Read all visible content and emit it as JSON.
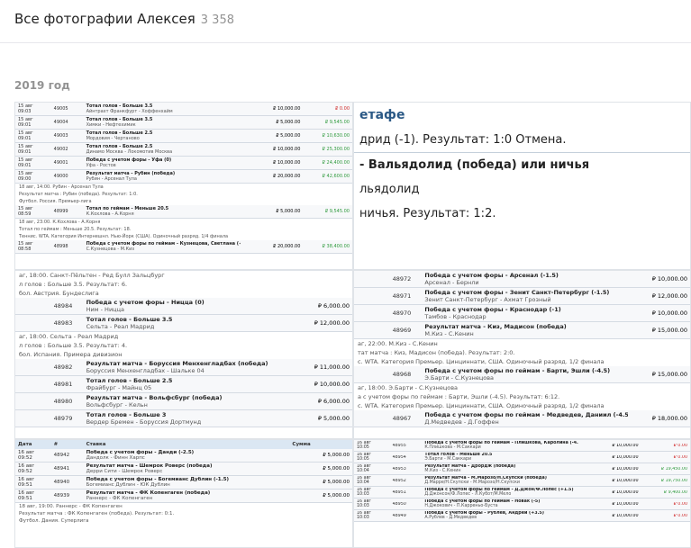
{
  "header": {
    "title": "Все фотографии Алексея",
    "count": "3 358"
  },
  "year": "2019 год",
  "photos": [
    {
      "items": [
        {
          "date": "15 авг",
          "time": "09:03",
          "id": "49005",
          "bet": "Тотал голов - Больше 3.5",
          "match": "Айнтрахт Франкфурт - Хоффенхайм",
          "stake": "₽ 10,000.00",
          "result": "₽ 0.00"
        },
        {
          "date": "15 авг",
          "time": "09:01",
          "id": "49004",
          "bet": "Тотал голов - Больше 3.5",
          "match": "Химки - Нефтехимик",
          "stake": "₽ 5,000.00",
          "result": "₽ 9,545.00"
        },
        {
          "date": "15 авг",
          "time": "09:01",
          "id": "49003",
          "bet": "Тотал голов - Больше 2.5",
          "match": "Мордовия - Чертаново",
          "stake": "₽ 5,000.00",
          "result": "₽ 10,630.00"
        },
        {
          "date": "15 авг",
          "time": "09:01",
          "id": "49002",
          "bet": "Тотал голов - Больше 2.5",
          "match": "Динамо Москва - Локомотив Москва",
          "stake": "₽ 10,000.00",
          "result": "₽ 25,300.00"
        },
        {
          "date": "15 авг",
          "time": "09:01",
          "id": "49001",
          "bet": "Победа с учетом форы - Уфа (0)",
          "match": "Уфа - Ростов",
          "stake": "₽ 10,000.00",
          "result": "₽ 24,400.00"
        },
        {
          "date": "15 авг",
          "time": "09:00",
          "id": "49000",
          "bet": "Результат матча - Рубин (победа)",
          "match": "Рубин - Арсенал Тула",
          "stake": "₽ 20,000.00",
          "result": "₽ 42,600.00"
        },
        {
          "text": "18 авг, 14:00. Рубин - Арсенал Тула"
        },
        {
          "text": "Результат матча : Рубин (победа). Результат: 1:0."
        },
        {
          "text": "Футбол. Россия. Премьер-лига"
        },
        {
          "date": "15 авг",
          "time": "08:59",
          "id": "48999",
          "bet": "Тотал по геймам - Меньше 20.5",
          "match": "К.Кохлова - А.Корня",
          "stake": "₽ 5,000.00",
          "result": "₽ 9,545.00"
        },
        {
          "text": "18 авг, 23:00. К.Кохлова - А.Корня"
        },
        {
          "text": "Тотал по геймам : Меньше 20.5. Результат: 18."
        },
        {
          "text": "Теннис. WTA. Категория Интернешнл. Нью-Йорк (США). Одиночный разряд. 1/4 финала"
        },
        {
          "date": "15 авг",
          "time": "08:58",
          "id": "48998",
          "bet": "Победа с учетом форы по геймам - Кузнецова, Светлана (+3.5)",
          "match": "С.Кузнецова - М.Киз",
          "stake": "₽ 20,000.00",
          "result": "₽ 38,400.00"
        }
      ]
    },
    {
      "items": [
        {
          "text": "етафе"
        },
        {
          "text": "дрид (-1). Результат: 1:0 Отмена."
        },
        {
          "text": "- Вальядолид (победа) или ничья"
        },
        {
          "text": "льядолид"
        },
        {
          "text": "ничья. Результат: 1:2."
        }
      ]
    },
    {
      "items": [
        {
          "text": "аг, 18:00. Санкт-Пёльтен - Ред Булл Зальцбург"
        },
        {
          "text": "л голов : Больше 3.5. Результат: 6."
        },
        {
          "text": "бол. Австрия. Бундеслига"
        },
        {
          "id": "48984",
          "bet": "Победа с учетом форы - Ницца (0)",
          "match": "Ним - Ницца",
          "stake": "₽ 6,000.00"
        },
        {
          "id": "48983",
          "bet": "Тотал голов - Больше 3.5",
          "match": "Сельта - Реал Мадрид",
          "stake": "₽ 12,000.00"
        },
        {
          "text": "аг, 18:00. Сельта - Реал Мадрид"
        },
        {
          "text": "л голов : Больше 3.5. Результат: 4."
        },
        {
          "text": "бол. Испания. Примера дивизион"
        },
        {
          "id": "48982",
          "bet": "Результат матча - Боруссия Менхенгладбах (победа)",
          "match": "Боруссия Менхенгладбах - Шальке 04",
          "stake": "₽ 11,000.00"
        },
        {
          "id": "48981",
          "bet": "Тотал голов - Больше 2.5",
          "match": "Фрайбург - Майнц 05",
          "stake": "₽ 10,000.00"
        },
        {
          "id": "48980",
          "bet": "Результат матча - Вольфсбург (победа)",
          "match": "Вольфсбург - Кельн",
          "stake": "₽ 6,000.00"
        },
        {
          "id": "48979",
          "bet": "Тотал голов - Больше 3",
          "match": "Вердер Бремен - Боруссия Дортмунд",
          "stake": "₽ 5,000.00"
        }
      ]
    },
    {
      "items": [
        {
          "id": "48972",
          "bet": "Победа с учетом форы - Арсенал (-1.5)",
          "match": "Арсенал - Бернли",
          "stake": "₽ 10,000.00"
        },
        {
          "id": "48971",
          "bet": "Победа с учетом форы - Зенит Санкт-Петербург (-1.5)",
          "match": "Зенит Санкт-Петербург - Ахмат Грозный",
          "stake": "₽ 12,000.00"
        },
        {
          "id": "48970",
          "bet": "Победа с учетом форы - Краснодар (-1)",
          "match": "Тамбов - Краснодар",
          "stake": "₽ 10,000.00"
        },
        {
          "id": "48969",
          "bet": "Результат матча - Киз, Мадисон (победа)",
          "match": "М.Киз - С.Кенин",
          "stake": "₽ 15,000.00"
        },
        {
          "text": "аг, 22:00. М.Киз - С.Кенин"
        },
        {
          "text": "тат матча : Киз, Мадисон (победа). Результат: 2:0."
        },
        {
          "text": "с. WTA. Категория Премьер. Цинциннати, США. Одиночный разряд. 1/2 финала"
        },
        {
          "id": "48968",
          "bet": "Победа с учетом форы по геймам - Барти, Эшли (-4.5)",
          "match": "Э.Барти - С.Кузнецова",
          "stake": "₽ 15,000.00"
        },
        {
          "text": "аг, 18:00. Э.Барти - С.Кузнецова"
        },
        {
          "text": "а с учетом форы по геймам : Барти, Эшли (-4.5). Результат: 6:12."
        },
        {
          "text": "с. WTA. Категория Премьер. Цинциннати, США. Одиночный разряд. 1/2 финала"
        },
        {
          "id": "48967",
          "bet": "Победа с учетом форы по геймам - Медведев, Даниил (-4.5)",
          "match": "Д.Медведев - Д.Гоффен",
          "stake": "₽ 18,000.00"
        }
      ]
    },
    {
      "head": [
        "Дата",
        "#",
        "Ставка",
        "Сумма"
      ],
      "items": [
        {
          "date": "16 авг",
          "time": "09:52",
          "id": "48942",
          "bet": "Победа с учетом форы - Данди (-2.5)",
          "match": "Дандолк - Финн Харпс",
          "stake": "₽ 5,000.00"
        },
        {
          "date": "16 авг",
          "time": "09:52",
          "id": "48941",
          "bet": "Результат матча - Шемрок Роверс (победа)",
          "match": "Дерри Сити - Шемрок Роверс",
          "stake": "₽ 5,000.00"
        },
        {
          "date": "16 авг",
          "time": "09:51",
          "id": "48940",
          "bet": "Победа с учетом форы - Богемианс Дублин (-1.5)",
          "match": "Богемианс Дублин - ЮК Дублин",
          "stake": "₽ 5,000.00"
        },
        {
          "date": "16 авг",
          "time": "09:51",
          "id": "48939",
          "bet": "Результат матча - ФК Копенгаген (победа)",
          "match": "Раннерс - ФК Копенгаген",
          "stake": "₽ 5,000.00"
        },
        {
          "text": "18 авг, 19:00. Раннерс - ФК Копенгаген"
        },
        {
          "text": "Результат матча : ФК Копенгаген (победа). Результат: 0:1."
        },
        {
          "text": "Футбол. Дания. Суперлига"
        }
      ]
    },
    {
      "items": [
        {
          "date": "16 авг",
          "time": "10:05",
          "id": "48955",
          "bet": "Победа с учетом форы по геймам - Плишкова, Каролина (-4.5)",
          "match": "К.Плишкова - М.Саккари",
          "stake": "₽ 10,000.00",
          "result": "₽ 0.00"
        },
        {
          "date": "16 авг",
          "time": "10:05",
          "id": "48954",
          "bet": "Тотал голов - Меньше 20.5",
          "match": "Э.Барти - М.Саккари",
          "stake": "₽ 10,000.00",
          "result": "₽ 0.00"
        },
        {
          "date": "16 авг",
          "time": "10:04",
          "id": "48953",
          "bet": "Результат матча - Дрордж (победа)",
          "match": "М.Киз - С.Кенин",
          "stake": "₽ 10,000.00",
          "result": "₽ 19,450.00"
        },
        {
          "date": "16 авг",
          "time": "10:04",
          "id": "48952",
          "bet": "Результат матча - М.Марозо/Н.Скупски (победа)",
          "match": "Д.Марре/Н.Скупски - М.Марозо/Н.Скупски",
          "stake": "₽ 10,000.00",
          "result": "₽ 19,750.00"
        },
        {
          "date": "16 авг",
          "time": "10:03",
          "id": "48951",
          "bet": "Победа с учетом форы по геймам - Д.Джон/Ф.Лопес (+1.5)",
          "match": "Д.Джонсон/Ф.Лопес - Л.Кубот/М.Мело",
          "stake": "₽ 10,000.00",
          "result": "₽ 9,400.00"
        },
        {
          "date": "16 авг",
          "time": "10:03",
          "id": "48950",
          "bet": "Победа с учетом форы по геймам - Новак (-5)",
          "match": "Н.Джокович - П.Карреньо-Буста",
          "stake": "₽ 10,000.00",
          "result": "₽ 0.00"
        },
        {
          "date": "16 авг",
          "time": "10:03",
          "id": "48949",
          "bet": "Победа с учетом форы - Рублев, Андрей (+3.5)",
          "match": "А.Рублев - Д.Медведев",
          "stake": "₽ 10,000.00",
          "result": "₽ 0.00"
        }
      ]
    }
  ]
}
